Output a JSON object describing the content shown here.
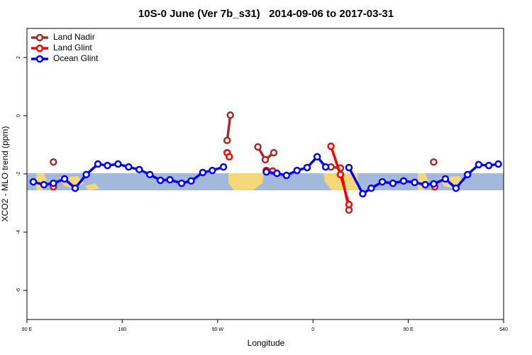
{
  "chart_data": {
    "type": "line",
    "title": "10S-0 June (Ver 7b_s31)   2014-09-06 to 2017-03-31",
    "x_label": "Longitude",
    "y_label": "XCO2 - MLO trend (ppm)",
    "xlim": [
      90,
      540
    ],
    "ylim": [
      -7,
      3
    ],
    "xticks": [
      {
        "value": 90,
        "label": "90 E"
      },
      180,
      {
        "value": 270,
        "label": "90 W"
      },
      {
        "value": 360,
        "label": "0"
      },
      {
        "value": 450,
        "label": "90 E"
      },
      540
    ],
    "yticks": [
      -6,
      -4,
      -2,
      0,
      2
    ],
    "legend": "top-left",
    "series": [
      {
        "name": "Land Nadir",
        "color": "#a52a2a",
        "x": [
          115,
          null,
          279,
          282,
          null,
          308,
          315,
          323,
          null,
          377,
          386,
          394,
          null,
          474
        ],
        "values": [
          -1.59,
          null,
          -0.85,
          0.02,
          null,
          -1.07,
          -1.51,
          -1.27,
          null,
          -1.76,
          -1.8,
          -3.24,
          null,
          -1.59
        ]
      },
      {
        "name": "Land Glint",
        "color": "#ff0000",
        "x": [
          115,
          null,
          279,
          281,
          null,
          316,
          322,
          null,
          377,
          386,
          394,
          null,
          475
        ],
        "values": [
          -2.44,
          null,
          -1.27,
          -1.41,
          null,
          -1.88,
          -1.9,
          null,
          -1.05,
          -2.02,
          -3.05,
          null,
          -2.44
        ]
      },
      {
        "name": "Ocean Glint",
        "color": "#0000ff",
        "x": [
          96,
          106,
          115,
          125.5,
          135.5,
          146,
          157,
          166,
          176,
          186,
          196,
          206,
          216,
          225,
          236,
          245,
          256,
          265,
          275.5,
          null,
          316,
          326,
          335,
          345,
          354.5,
          364,
          372,
          null,
          394,
          407,
          415,
          425.5,
          435.5,
          445.6,
          456,
          466,
          474,
          485,
          495,
          506,
          516.5,
          526,
          535
        ],
        "values": [
          -2.27,
          -2.37,
          -2.32,
          -2.17,
          -2.49,
          -2.02,
          -1.66,
          -1.71,
          -1.66,
          -1.76,
          -1.85,
          -2.02,
          -2.22,
          -2.2,
          -2.32,
          -2.24,
          -1.95,
          -1.88,
          -1.76,
          null,
          -1.93,
          -1.98,
          -2.05,
          -1.88,
          -1.78,
          -1.41,
          -1.76,
          null,
          -1.78,
          -2.68,
          -2.49,
          -2.27,
          -2.32,
          -2.24,
          -2.29,
          -2.37,
          -2.34,
          -2.17,
          -2.49,
          -2.02,
          -1.68,
          -1.71,
          -1.66
        ]
      }
    ]
  }
}
